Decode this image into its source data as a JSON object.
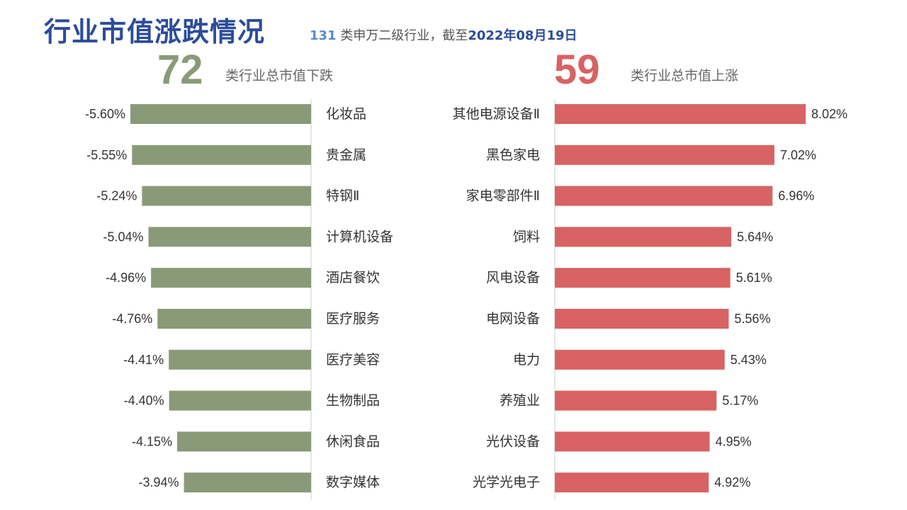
{
  "header": {
    "title": "行业市值涨跌情况",
    "subtitle_count": "131",
    "subtitle_text": "类申万二级行业，截至",
    "subtitle_date": "2022年08月19日"
  },
  "summary": {
    "down_count": "72",
    "down_label": "类行业总市值下跌",
    "up_count": "59",
    "up_label": "类行业总市值上涨"
  },
  "colors": {
    "title": "#2b4c9b",
    "down_bar": "#8a9a78",
    "up_bar": "#d96262",
    "axis": "#cccccc"
  },
  "chart_data": [
    {
      "type": "bar",
      "orientation": "horizontal",
      "name": "decliners",
      "categories": [
        "化妆品",
        "贵金属",
        "特钢Ⅱ",
        "计算机设备",
        "酒店餐饮",
        "医疗服务",
        "医疗美容",
        "生物制品",
        "休闲食品",
        "数字媒体"
      ],
      "values": [
        -5.6,
        -5.55,
        -5.24,
        -5.04,
        -4.96,
        -4.76,
        -4.41,
        -4.4,
        -4.15,
        -3.94
      ],
      "labels": [
        "-5.60%",
        "-5.55%",
        "-5.24%",
        "-5.04%",
        "-4.96%",
        "-4.76%",
        "-4.41%",
        "-4.40%",
        "-4.15%",
        "-3.94%"
      ],
      "unit": "%",
      "xlim": [
        -9,
        0
      ],
      "grid": false
    },
    {
      "type": "bar",
      "orientation": "horizontal",
      "name": "gainers",
      "categories": [
        "其他电源设备Ⅱ",
        "黑色家电",
        "家电零部件Ⅱ",
        "饲料",
        "风电设备",
        "电网设备",
        "电力",
        "养殖业",
        "光伏设备",
        "光学光电子"
      ],
      "values": [
        8.02,
        7.02,
        6.96,
        5.64,
        5.61,
        5.56,
        5.43,
        5.17,
        4.95,
        4.92
      ],
      "labels": [
        "8.02%",
        "7.02%",
        "6.96%",
        "5.64%",
        "5.61%",
        "5.56%",
        "5.43%",
        "5.17%",
        "4.95%",
        "4.92%"
      ],
      "unit": "%",
      "xlim": [
        0,
        8.02
      ],
      "grid": false
    }
  ]
}
